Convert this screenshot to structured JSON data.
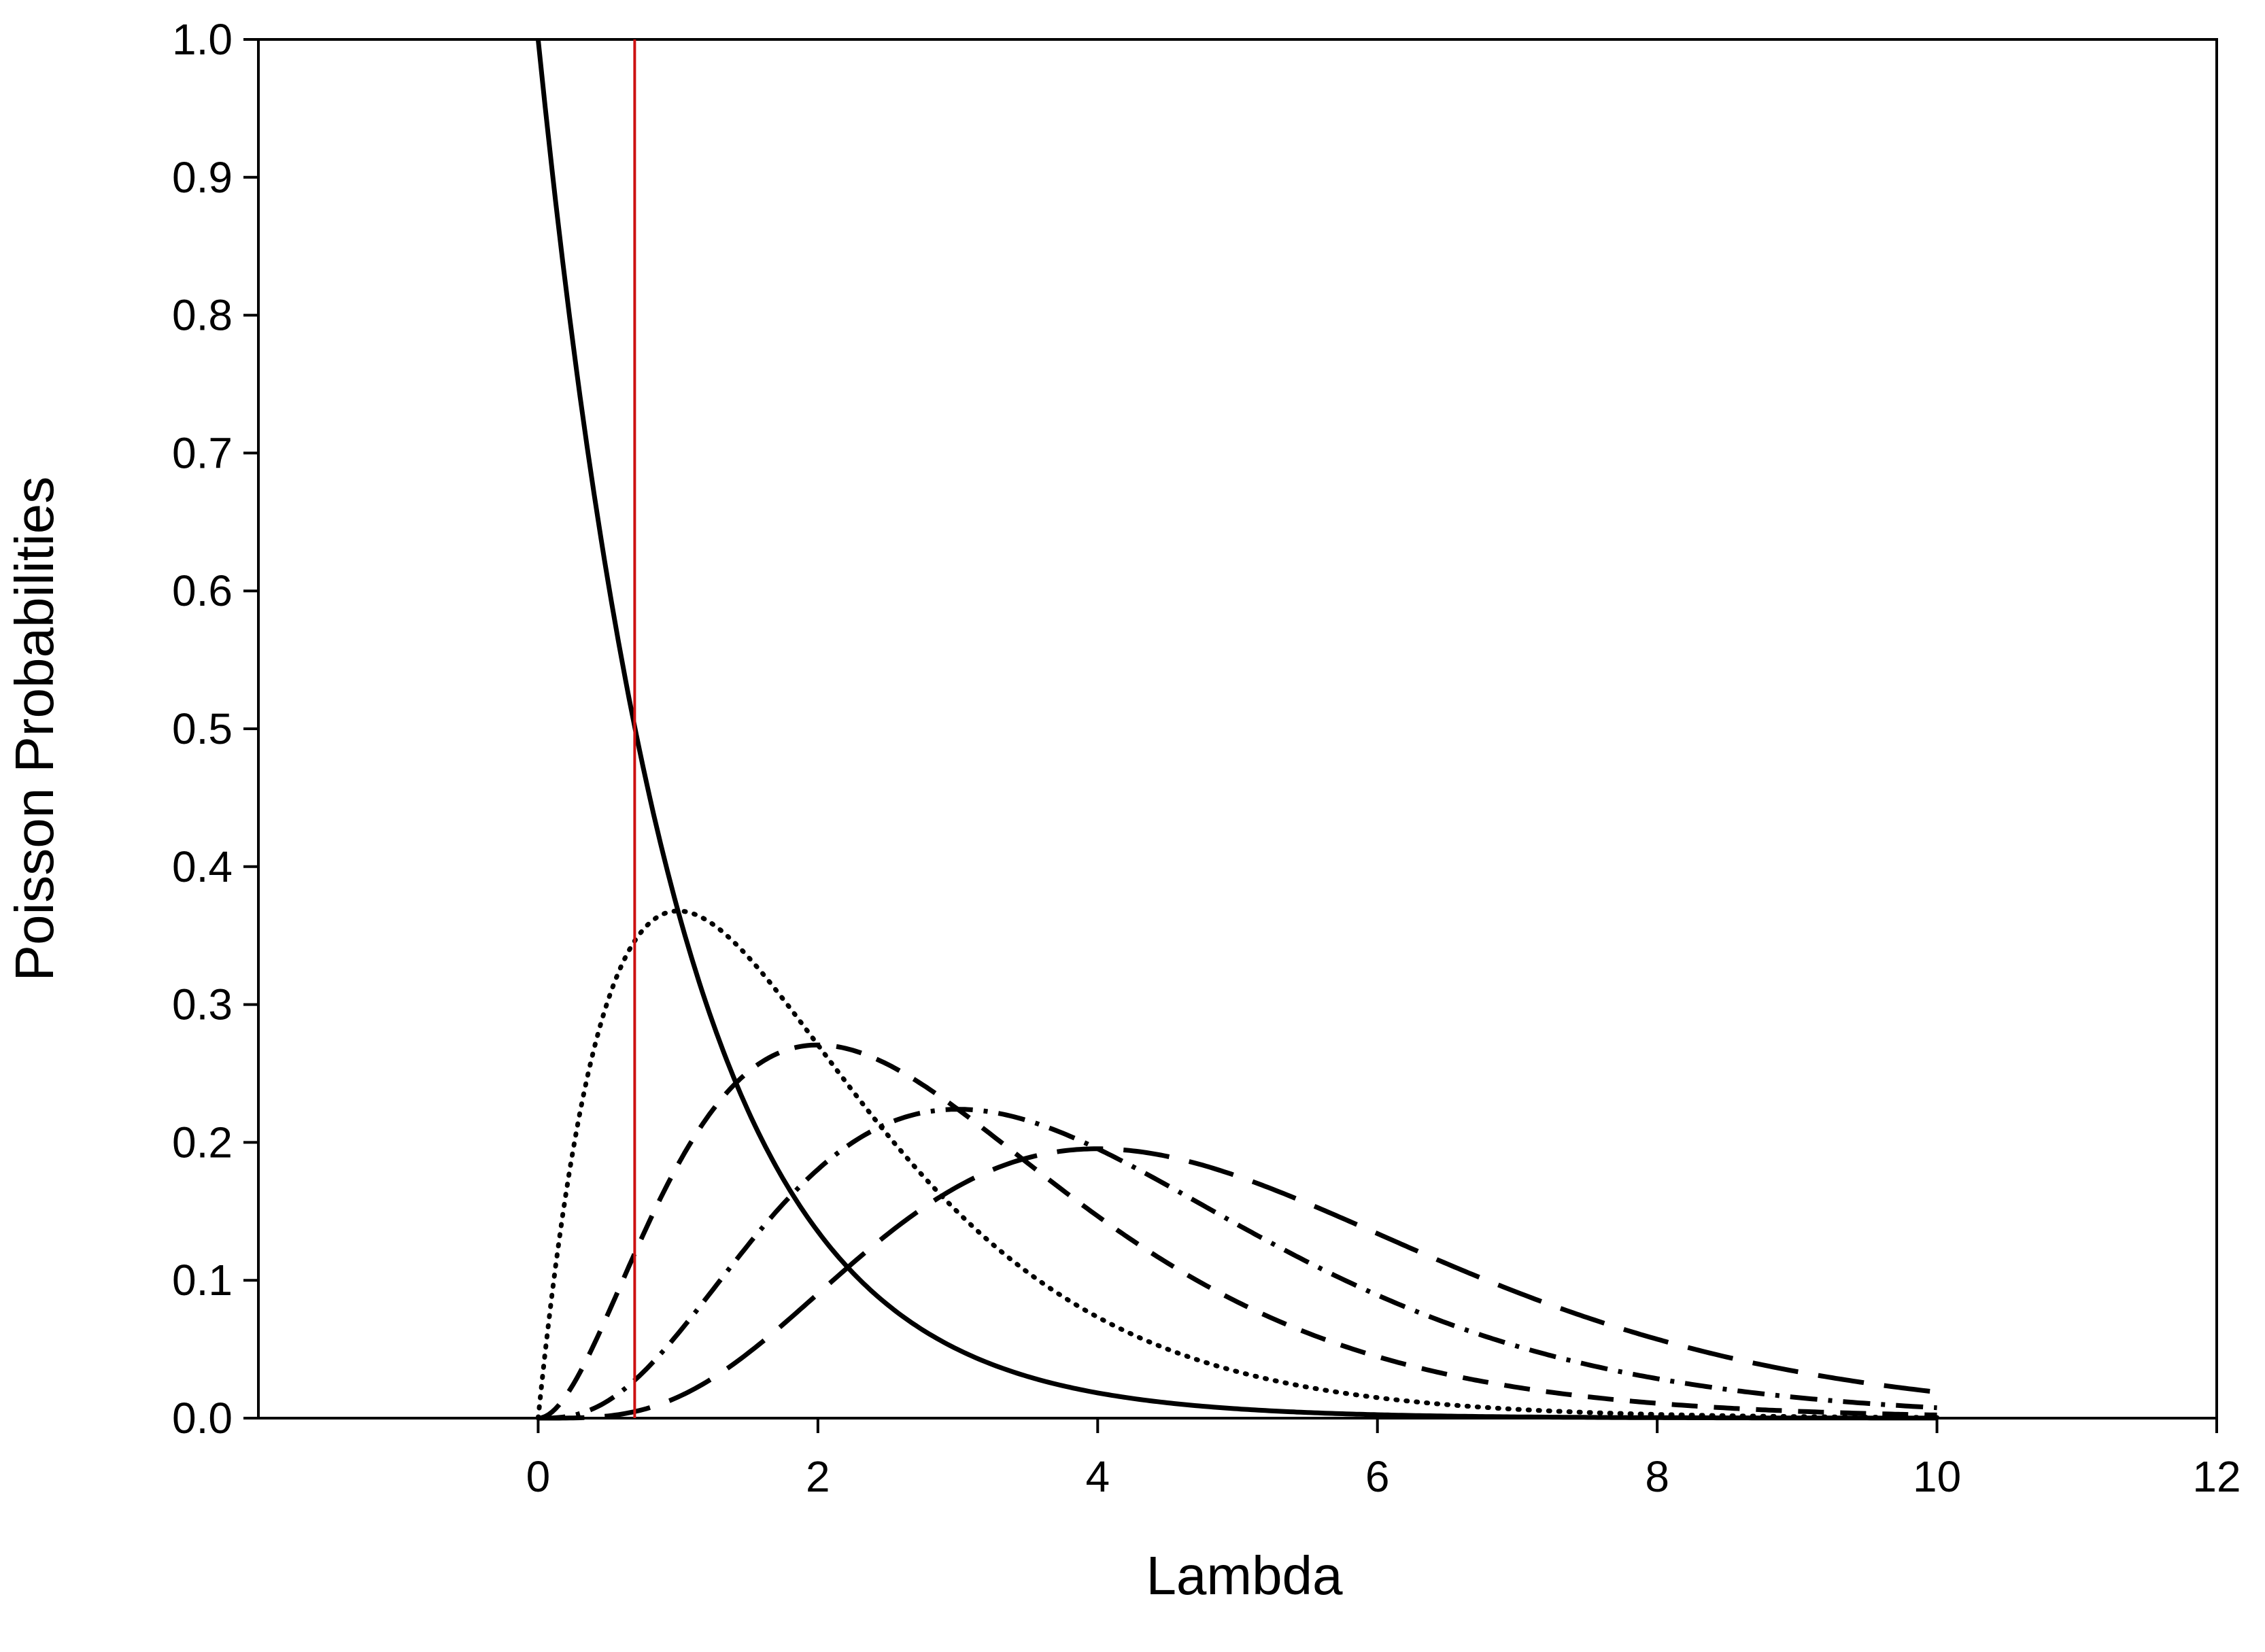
{
  "chart_data": {
    "type": "line",
    "title": "",
    "xlabel": "Lambda",
    "ylabel": "Poisson Probabilities",
    "xlim": [
      -2,
      12
    ],
    "ylim": [
      0,
      1.0
    ],
    "x_ticks": [
      0,
      2,
      4,
      6,
      8,
      10,
      12
    ],
    "x_tick_labels": [
      "0",
      "2",
      "4",
      "6",
      "8",
      "10",
      "12"
    ],
    "y_ticks": [
      0,
      0.1,
      0.2,
      0.3,
      0.4,
      0.5,
      0.6,
      0.7,
      0.8,
      0.9,
      1.0
    ],
    "y_tick_labels": [
      "0.0",
      "0.1",
      "0.2",
      "0.3",
      "0.4",
      "0.5",
      "0.6",
      "0.7",
      "0.8",
      "0.9",
      "1.0"
    ],
    "grid": false,
    "legend": "none",
    "x_range": [
      0,
      10
    ],
    "series": [
      {
        "k": 0,
        "style": "solid",
        "color": "#000000",
        "points": [
          [
            0,
            1.0
          ],
          [
            0.5,
            0.607
          ],
          [
            0.69,
            0.5
          ],
          [
            1,
            0.368
          ],
          [
            1.5,
            0.223
          ],
          [
            2,
            0.135
          ],
          [
            3,
            0.05
          ],
          [
            4,
            0.018
          ],
          [
            5,
            0.0067
          ],
          [
            6,
            0.0025
          ],
          [
            8,
            0.0003
          ],
          [
            10,
            0.0
          ]
        ]
      },
      {
        "k": 1,
        "style": "dotted",
        "color": "#000000",
        "points": [
          [
            0,
            0.0
          ],
          [
            0.5,
            0.303
          ],
          [
            0.69,
            0.347
          ],
          [
            1,
            0.368
          ],
          [
            1.5,
            0.335
          ],
          [
            2,
            0.271
          ],
          [
            3,
            0.149
          ],
          [
            4,
            0.073
          ],
          [
            5,
            0.034
          ],
          [
            6,
            0.015
          ],
          [
            8,
            0.003
          ],
          [
            10,
            0.0005
          ]
        ]
      },
      {
        "k": 2,
        "style": "dashed",
        "color": "#000000",
        "points": [
          [
            0,
            0.0
          ],
          [
            0.5,
            0.076
          ],
          [
            0.69,
            0.12
          ],
          [
            1,
            0.184
          ],
          [
            1.5,
            0.251
          ],
          [
            2,
            0.271
          ],
          [
            3,
            0.224
          ],
          [
            4,
            0.147
          ],
          [
            5,
            0.084
          ],
          [
            6,
            0.045
          ],
          [
            8,
            0.011
          ],
          [
            10,
            0.002
          ]
        ]
      },
      {
        "k": 3,
        "style": "dash-dot",
        "color": "#000000",
        "points": [
          [
            0,
            0.0
          ],
          [
            0.5,
            0.013
          ],
          [
            0.69,
            0.028
          ],
          [
            1,
            0.061
          ],
          [
            1.5,
            0.126
          ],
          [
            2,
            0.18
          ],
          [
            3,
            0.224
          ],
          [
            4,
            0.195
          ],
          [
            5,
            0.14
          ],
          [
            6,
            0.089
          ],
          [
            8,
            0.029
          ],
          [
            10,
            0.008
          ]
        ]
      },
      {
        "k": 4,
        "style": "long-dash",
        "color": "#000000",
        "points": [
          [
            0,
            0.0
          ],
          [
            0.5,
            0.002
          ],
          [
            0.69,
            0.005
          ],
          [
            1,
            0.015
          ],
          [
            1.5,
            0.047
          ],
          [
            2,
            0.09
          ],
          [
            3,
            0.168
          ],
          [
            4,
            0.195
          ],
          [
            5,
            0.175
          ],
          [
            6,
            0.134
          ],
          [
            8,
            0.057
          ],
          [
            10,
            0.019
          ]
        ]
      }
    ],
    "reference_line": {
      "x": 0.69,
      "color": "#cc1111"
    }
  }
}
